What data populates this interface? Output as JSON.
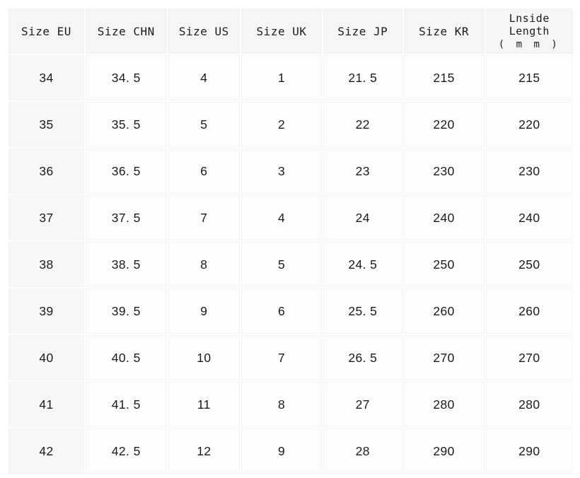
{
  "colors": {
    "page_bg": "#ffffff",
    "header_cell_bg": "#f5f5f6",
    "first_column_bg": "#f7f7f9",
    "data_cell_bg": "#fdfdfe",
    "grid_gap": "#ffffff",
    "text": "#1b1b1b"
  },
  "chart_data": {
    "type": "table",
    "title": "",
    "columns": [
      "Size EU",
      "Size CHN",
      "Size US",
      "Size UK",
      "Size JP",
      "Size KR",
      "Lnside Length"
    ],
    "last_column_unit_line": "( m m )",
    "rows": [
      [
        "34",
        "34. 5",
        "4",
        "1",
        "21. 5",
        "215",
        "215"
      ],
      [
        "35",
        "35. 5",
        "5",
        "2",
        "22",
        "220",
        "220"
      ],
      [
        "36",
        "36. 5",
        "6",
        "3",
        "23",
        "230",
        "230"
      ],
      [
        "37",
        "37. 5",
        "7",
        "4",
        "24",
        "240",
        "240"
      ],
      [
        "38",
        "38. 5",
        "8",
        "5",
        "24. 5",
        "250",
        "250"
      ],
      [
        "39",
        "39. 5",
        "9",
        "6",
        "25. 5",
        "260",
        "260"
      ],
      [
        "40",
        "40. 5",
        "10",
        "7",
        "26. 5",
        "270",
        "270"
      ],
      [
        "41",
        "41. 5",
        "11",
        "8",
        "27",
        "280",
        "280"
      ],
      [
        "42",
        "42. 5",
        "12",
        "9",
        "28",
        "290",
        "290"
      ]
    ]
  }
}
